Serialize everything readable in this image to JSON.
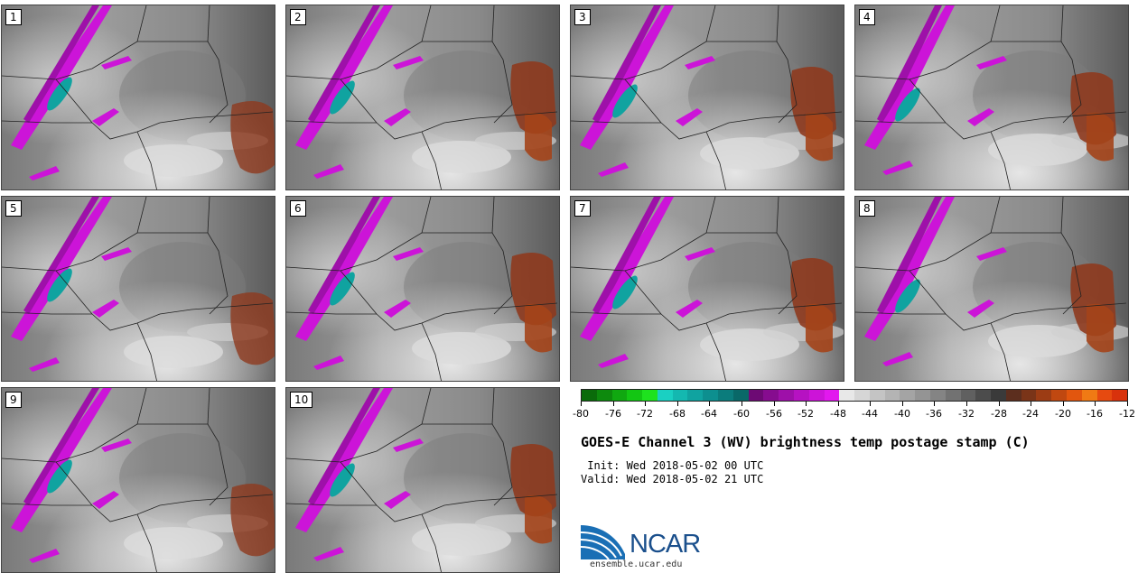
{
  "panels": [
    {
      "label": "1",
      "variant": 0
    },
    {
      "label": "2",
      "variant": 1
    },
    {
      "label": "3",
      "variant": 2
    },
    {
      "label": "4",
      "variant": 3
    },
    {
      "label": "5",
      "variant": 0
    },
    {
      "label": "6",
      "variant": 1
    },
    {
      "label": "7",
      "variant": 2
    },
    {
      "label": "8",
      "variant": 3
    },
    {
      "label": "9",
      "variant": 0
    },
    {
      "label": "10",
      "variant": 1
    }
  ],
  "colorbar": {
    "colors": [
      "#0a6b0a",
      "#0d8a0d",
      "#10a810",
      "#13c613",
      "#1ee21e",
      "#1ad0c2",
      "#14b8b0",
      "#10a3a0",
      "#0d8f8f",
      "#0b7c7c",
      "#096868",
      "#6d0a74",
      "#860c8f",
      "#9e10a9",
      "#b612c2",
      "#cc14d8",
      "#e218ee",
      "#e8e8e8",
      "#d6d6d6",
      "#c4c4c4",
      "#b4b4b4",
      "#a4a4a4",
      "#949494",
      "#848484",
      "#727272",
      "#606060",
      "#4c4c4c",
      "#3a3a3a",
      "#5c2e1e",
      "#7a3418",
      "#9c3c14",
      "#c04810",
      "#e2560e",
      "#f07a14",
      "#e64a10",
      "#d8320c"
    ],
    "ticks": [
      "-80",
      "-76",
      "-72",
      "-68",
      "-64",
      "-60",
      "-56",
      "-52",
      "-48",
      "-44",
      "-40",
      "-36",
      "-32",
      "-28",
      "-24",
      "-20",
      "-16",
      "-12"
    ]
  },
  "title": "GOES-E Channel 3 (WV) brightness temp postage stamp (C)",
  "init_line": " Init: Wed 2018-05-02 00 UTC",
  "valid_line": "Valid: Wed 2018-05-02 21 UTC",
  "logo": {
    "text": "NCAR",
    "site": "ensemble.ucar.edu"
  }
}
